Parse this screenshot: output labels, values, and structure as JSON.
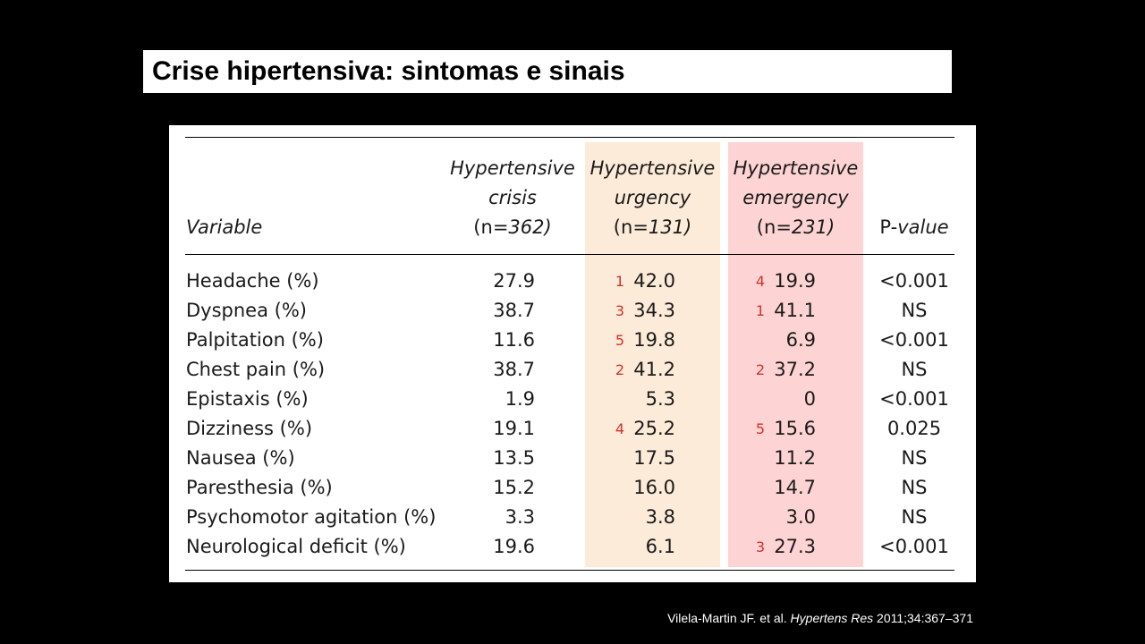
{
  "title": "Crise hipertensiva: sintomas e sinais",
  "colors": {
    "urgency_bg": "#fcebd8",
    "emergency_bg": "#fdd3d3",
    "rank_color": "#d1332b",
    "slide_bg": "#000000"
  },
  "table": {
    "headers": {
      "variable": "Variable",
      "crisis_line1": "Hypertensive",
      "crisis_line2": "crisis",
      "crisis_n_prefix": "(n",
      "crisis_n_eq": "=",
      "crisis_n_val": "362)",
      "urgency_line1": "Hypertensive",
      "urgency_line2": "urgency",
      "urgency_n_prefix": "(n",
      "urgency_n_eq": "=",
      "urgency_n_val": "131)",
      "emergency_line1": "Hypertensive",
      "emergency_line2": "emergency",
      "emergency_n_prefix": "(n",
      "emergency_n_eq": "=",
      "emergency_n_val": "231)",
      "pvalue_prefix": "P-",
      "pvalue_suffix": "value"
    },
    "rows": [
      {
        "variable": "Headache (%)",
        "crisis": "27.9",
        "urgency": "42.0",
        "urgency_rank": "1",
        "emergency": "19.9",
        "emergency_rank": "4",
        "p": "<0.001"
      },
      {
        "variable": "Dyspnea (%)",
        "crisis": "38.7",
        "urgency": "34.3",
        "urgency_rank": "3",
        "emergency": "41.1",
        "emergency_rank": "1",
        "p": "NS"
      },
      {
        "variable": "Palpitation (%)",
        "crisis": "11.6",
        "urgency": "19.8",
        "urgency_rank": "5",
        "emergency": "6.9",
        "emergency_rank": "",
        "p": "<0.001"
      },
      {
        "variable": "Chest pain (%)",
        "crisis": "38.7",
        "urgency": "41.2",
        "urgency_rank": "2",
        "emergency": "37.2",
        "emergency_rank": "2",
        "p": "NS"
      },
      {
        "variable": "Epistaxis (%)",
        "crisis": "1.9",
        "urgency": "5.3",
        "urgency_rank": "",
        "emergency": "0",
        "emergency_rank": "",
        "p": "<0.001"
      },
      {
        "variable": "Dizziness (%)",
        "crisis": "19.1",
        "urgency": "25.2",
        "urgency_rank": "4",
        "emergency": "15.6",
        "emergency_rank": "5",
        "p": "0.025"
      },
      {
        "variable": "Nausea (%)",
        "crisis": "13.5",
        "urgency": "17.5",
        "urgency_rank": "",
        "emergency": "11.2",
        "emergency_rank": "",
        "p": "NS"
      },
      {
        "variable": "Paresthesia (%)",
        "crisis": "15.2",
        "urgency": "16.0",
        "urgency_rank": "",
        "emergency": "14.7",
        "emergency_rank": "",
        "p": "NS"
      },
      {
        "variable": "Psychomotor agitation (%)",
        "crisis": "3.3",
        "urgency": "3.8",
        "urgency_rank": "",
        "emergency": "3.0",
        "emergency_rank": "",
        "p": "NS"
      },
      {
        "variable": "Neurological deficit (%)",
        "crisis": "19.6",
        "urgency": "6.1",
        "urgency_rank": "",
        "emergency": "27.3",
        "emergency_rank": "3",
        "p": "<0.001"
      }
    ]
  },
  "citation": {
    "authors": "Vilela-Martin JF. et al. ",
    "journal": "Hypertens Res",
    "details": " 2011;34:367–371"
  }
}
